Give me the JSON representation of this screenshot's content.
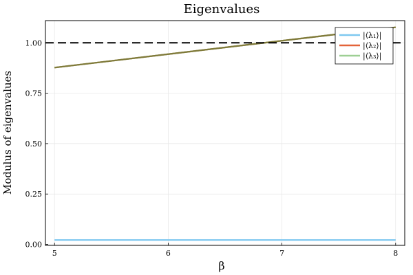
{
  "chart_data": {
    "type": "line",
    "title": "Eigenvalues",
    "xlabel": "β",
    "ylabel": "Modulus of eigenvalues",
    "xlim": [
      4.92,
      8.08
    ],
    "ylim": [
      -0.005,
      1.11
    ],
    "x_ticks": [
      5,
      6,
      7,
      8
    ],
    "x_tick_labels": [
      "5",
      "6",
      "7",
      "8"
    ],
    "y_ticks": [
      0.0,
      0.25,
      0.5,
      0.75,
      1.0
    ],
    "y_tick_labels": [
      "0.00",
      "0.25",
      "0.50",
      "0.75",
      "1.00"
    ],
    "grid": true,
    "legend_position": "top-right",
    "series": [
      {
        "name": "|⟨λ₁⟩|",
        "color": "#7ec8f0",
        "x": [
          5,
          8
        ],
        "y": [
          0.022,
          0.022
        ]
      },
      {
        "name": "|⟨λ₂⟩|",
        "color": "#e3643a",
        "x": [
          5,
          8
        ],
        "y": [
          0.877,
          1.077
        ]
      },
      {
        "name": "|⟨λ₃⟩|",
        "color": "#9ecf94",
        "x": [
          5,
          8
        ],
        "y": [
          0.877,
          1.077
        ]
      }
    ],
    "overlay_line": {
      "color": "#7f7a3a",
      "x": [
        5,
        8
      ],
      "y": [
        0.877,
        1.077
      ]
    },
    "reference_line": {
      "y": 1.0,
      "style": "dashed",
      "color": "#000000"
    }
  }
}
